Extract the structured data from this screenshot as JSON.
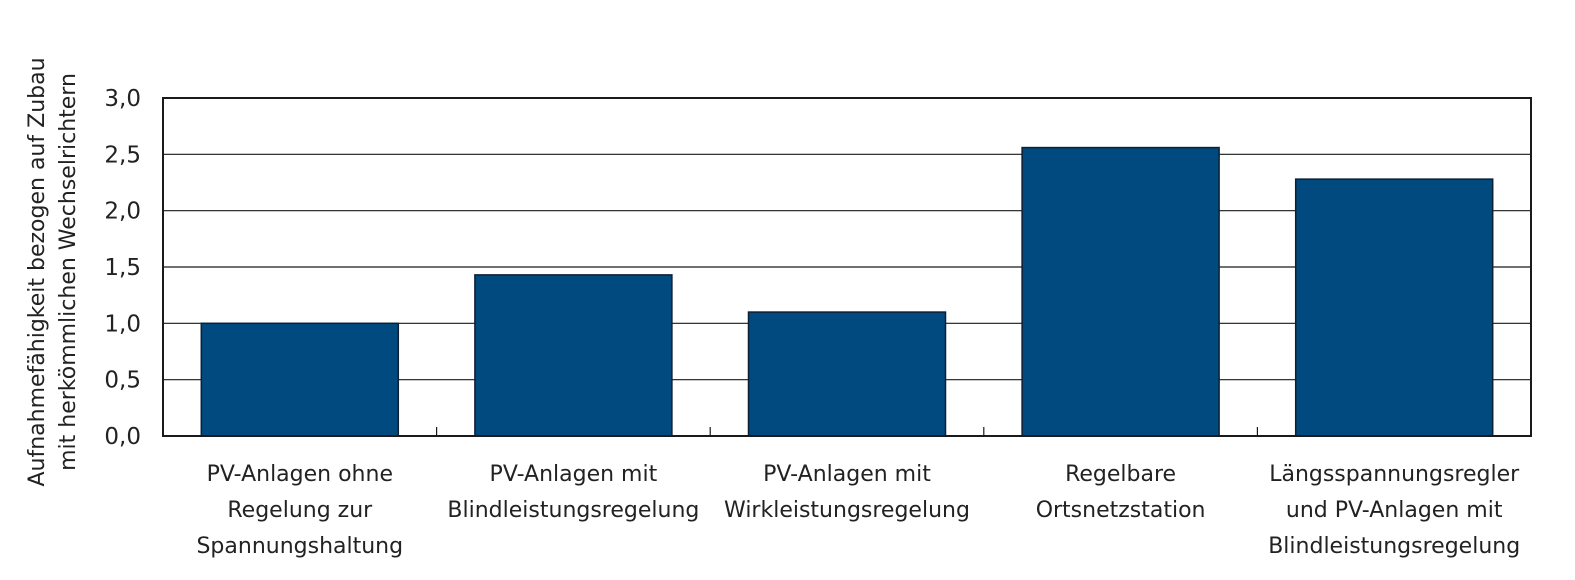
{
  "chart_data": {
    "type": "bar",
    "title": "",
    "xlabel": "",
    "ylabel_lines": [
      "Aufnahmefähigkeit bezogen auf Zubau",
      "mit herkömmlichen Wechselrichtern"
    ],
    "categories": [
      [
        "PV-Anlagen ohne",
        "Regelung zur",
        "Spannungshaltung"
      ],
      [
        "PV-Anlagen mit",
        "Blindleistungsregelung"
      ],
      [
        "PV-Anlagen mit",
        "Wirkleistungsregelung"
      ],
      [
        "Regelbare",
        "Ortsnetzstation"
      ],
      [
        "Längsspannungsregler",
        "und PV-Anlagen mit",
        "Blindleistungsregelung"
      ]
    ],
    "values": [
      1.0,
      1.43,
      1.1,
      2.56,
      2.28
    ],
    "ylim": [
      0,
      3.0
    ],
    "yticks": [
      "0,0",
      "0,5",
      "1,0",
      "1,5",
      "2,0",
      "2,5",
      "3,0"
    ],
    "ytick_values": [
      0,
      0.5,
      1.0,
      1.5,
      2.0,
      2.5,
      3.0
    ],
    "grid": true,
    "bar_color": "#004a7f",
    "bar_edge_color": "#0d1f33"
  }
}
